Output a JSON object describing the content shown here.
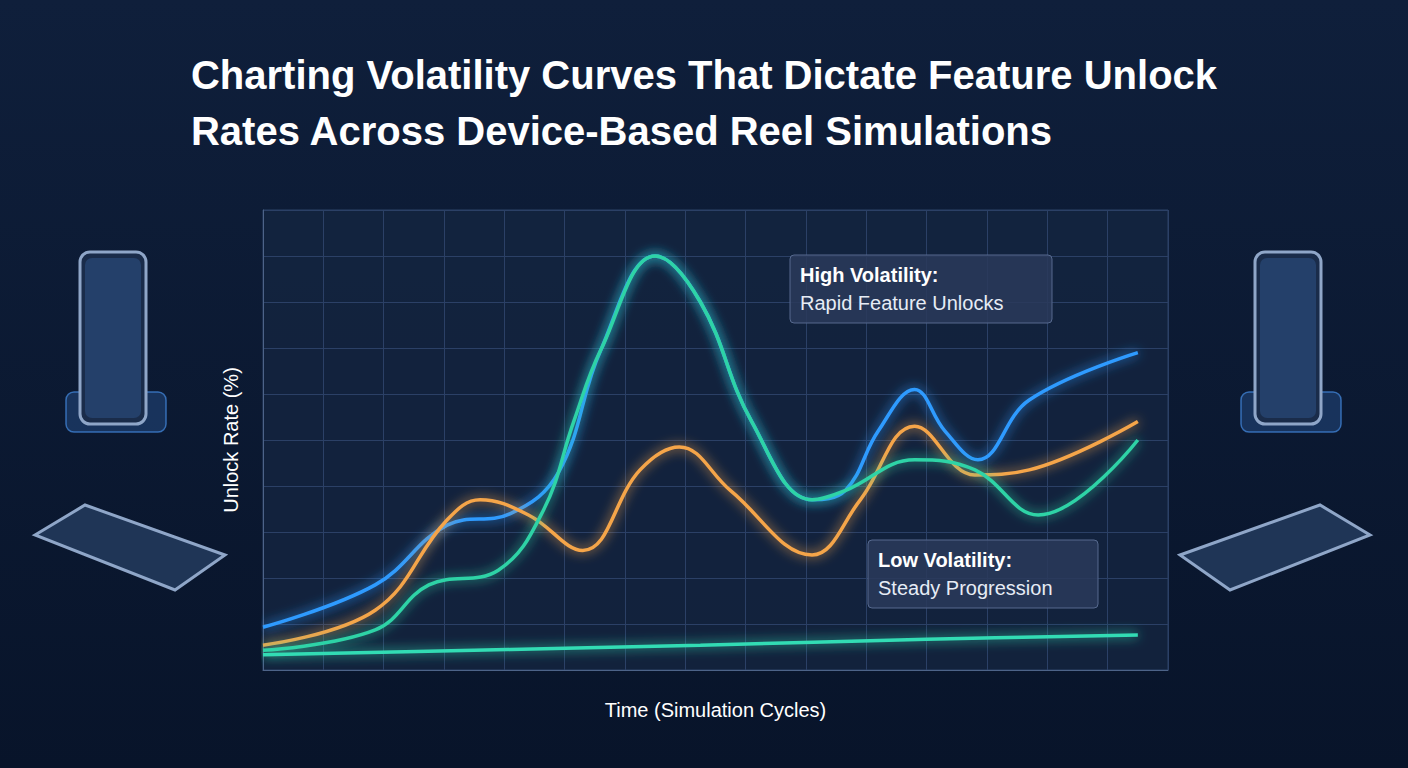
{
  "chart_data": {
    "type": "line",
    "title": "Charting Volatility Curves That Dictate Feature Unlock Rates Across Device-Based Reel Simulations",
    "x_label": "Time (Simulation Cycles)",
    "y_label": "Unlock Rate (%)",
    "xlim": [
      0,
      15
    ],
    "xticks": [
      0,
      1,
      2,
      3,
      4,
      5,
      6,
      7,
      8,
      9,
      10,
      11,
      12,
      13,
      14,
      15
    ],
    "ylim": [
      0,
      100
    ],
    "yticks": [
      0,
      10,
      20,
      30,
      40,
      50,
      60,
      70,
      80,
      90,
      100
    ],
    "grid": true,
    "tick_labels": false,
    "marker": "none",
    "line_style": "solid",
    "series": [
      {
        "color": "#2f9bff",
        "x": [
          0,
          1.86,
          3.05,
          4.1,
          4.9,
          5.6,
          6.5,
          7.25,
          8.1,
          9.1,
          9.65,
          10.2,
          10.8,
          11.3,
          11.85,
          12.7,
          14.5
        ],
        "values": [
          9.3,
          18.5,
          31.5,
          34,
          43,
          69.6,
          90,
          80,
          54,
          37,
          39,
          52,
          61,
          52,
          45.7,
          58.7,
          69
        ]
      },
      {
        "color": "#f5a54a",
        "x": [
          0,
          1.86,
          3.05,
          3.6,
          4.4,
          5.3,
          6.25,
          6.9,
          7.75,
          9.1,
          9.9,
          10.8,
          11.8,
          12.7,
          14.5
        ],
        "values": [
          5.4,
          13,
          32.6,
          37,
          33.7,
          26,
          43.5,
          48.5,
          39,
          25,
          37,
          53,
          42.4,
          43.5,
          54
        ]
      },
      {
        "color": "#2ed3a6",
        "x": [
          0,
          1.86,
          2.75,
          3.9,
          4.65,
          5.15,
          5.6,
          6.5,
          7.25,
          8.1,
          9.1,
          9.65,
          10.8,
          11.8,
          12.85,
          14.5
        ],
        "values": [
          4.3,
          8.7,
          18.5,
          21.7,
          34.8,
          54,
          69.6,
          90,
          80,
          54,
          37,
          39,
          45.7,
          43.5,
          33.7,
          50
        ]
      },
      {
        "color": "#33dcb4",
        "x": [
          0,
          3.5,
          7.25,
          11,
          14.5
        ],
        "values": [
          3.3,
          4.3,
          5.4,
          6.7,
          7.6
        ]
      }
    ],
    "annotations": [
      {
        "title": "High Volatility:",
        "text": "Rapid Feature Unlocks"
      },
      {
        "title": "Low Volatility:",
        "text": "Steady Progression"
      }
    ]
  }
}
